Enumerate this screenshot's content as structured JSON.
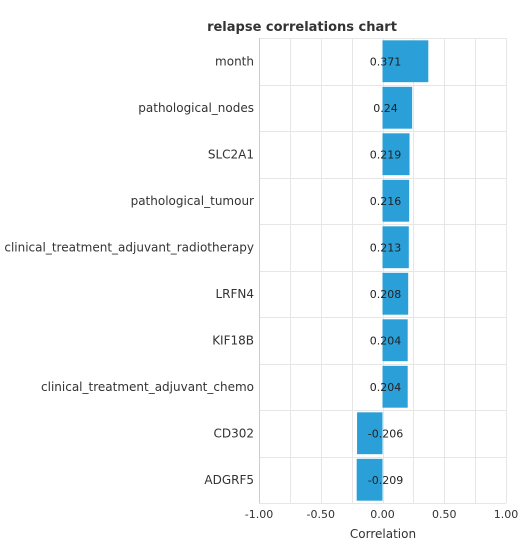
{
  "chart_data": {
    "type": "bar",
    "orientation": "horizontal",
    "title": "relapse correlations chart",
    "xlabel": "Correlation",
    "ylabel": "",
    "xlim": [
      -1.0,
      1.0
    ],
    "x_ticks": [
      "-1.00",
      "-0.50",
      "0.00",
      "0.50",
      "1.00"
    ],
    "x_tick_values": [
      -1.0,
      -0.5,
      0.0,
      0.5,
      1.0
    ],
    "grid": true,
    "bar_color": "#2a9fd8",
    "categories": [
      "month",
      "pathological_nodes",
      "SLC2A1",
      "pathological_tumour",
      "clinical_treatment_adjuvant_radiotherapy",
      "LRFN4",
      "KIF18B",
      "clinical_treatment_adjuvant_chemo",
      "CD302",
      "ADGRF5"
    ],
    "values": [
      0.371,
      0.24,
      0.219,
      0.216,
      0.213,
      0.208,
      0.204,
      0.204,
      -0.206,
      -0.209
    ],
    "value_labels": [
      "0.371",
      "0.24",
      "0.219",
      "0.216",
      "0.213",
      "0.208",
      "0.204",
      "0.204",
      "-0.206",
      "-0.209"
    ]
  }
}
